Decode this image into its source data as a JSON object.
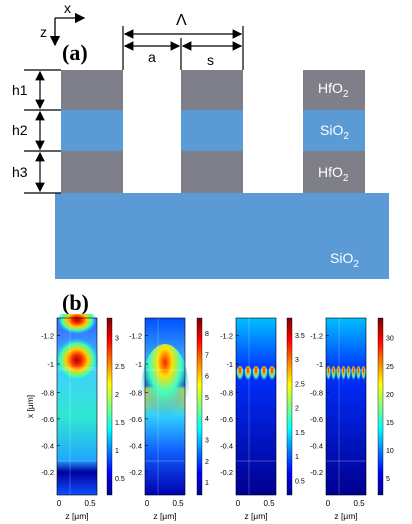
{
  "panel_a": {
    "label": "(a)",
    "axes": {
      "x": "x",
      "z": "z"
    },
    "dimensions": {
      "period": "Λ",
      "gap": "a",
      "width": "s"
    },
    "layers": [
      {
        "name": "h1",
        "material": "HfO",
        "sub": "2"
      },
      {
        "name": "h2",
        "material": "SiO",
        "sub": "2"
      },
      {
        "name": "h3",
        "material": "HfO",
        "sub": "2"
      }
    ],
    "substrate": {
      "material": "SiO",
      "sub": "2"
    },
    "colors": {
      "hfo2": "#7f7f8a",
      "sio2": "#5b9bd5",
      "substrate": "#5b9bd5"
    }
  },
  "panel_b": {
    "label": "(b)",
    "xlabel": "z [μm]",
    "ylabel": "x [μm]",
    "x_ticks": [
      "0",
      "0.5"
    ],
    "y_ticks": [
      "-1.2",
      "-1",
      "-0.8",
      "-0.6",
      "-0.4",
      "-0.2"
    ],
    "plots": [
      {
        "colorbar_ticks": [
          "0.5",
          "1",
          "1.5",
          "2",
          "2.5",
          "3"
        ],
        "show_y_axis": true
      },
      {
        "colorbar_ticks": [
          "1",
          "2",
          "3",
          "4",
          "5",
          "6",
          "7",
          "8"
        ],
        "show_y_axis": true
      },
      {
        "colorbar_ticks": [
          "0.5",
          "1",
          "1.5",
          "2",
          "2.5",
          "3",
          "3.5"
        ],
        "show_y_axis": true
      },
      {
        "colorbar_ticks": [
          "5",
          "10",
          "15",
          "20",
          "25",
          "30"
        ],
        "show_y_axis": true
      }
    ],
    "colormap": "jet"
  }
}
